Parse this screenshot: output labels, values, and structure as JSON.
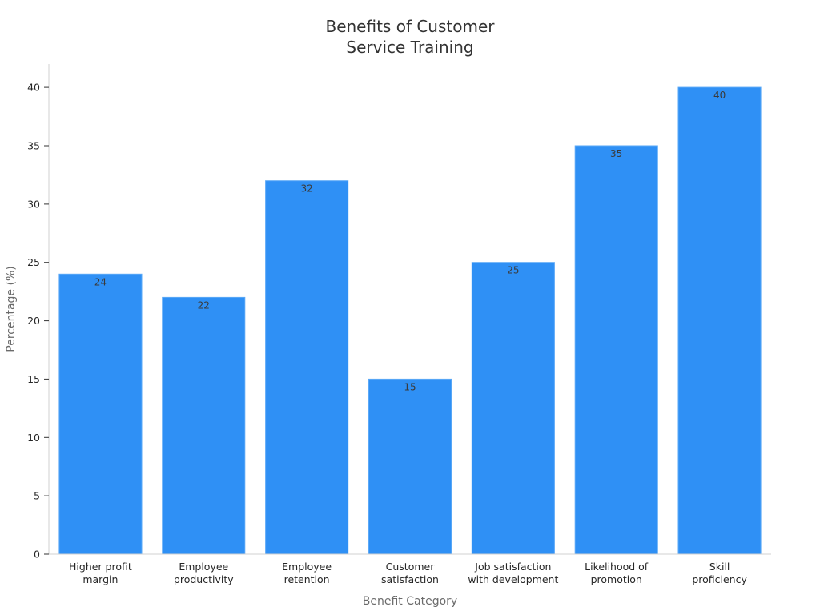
{
  "chart_data": {
    "type": "bar",
    "title": "Benefits of Customer\nService Training",
    "xlabel": "Benefit Category",
    "ylabel": "Percentage (%)",
    "categories": [
      [
        "Higher profit",
        "margin"
      ],
      [
        "Employee",
        "productivity"
      ],
      [
        "Employee",
        "retention"
      ],
      [
        "Customer",
        "satisfaction"
      ],
      [
        "Job satisfaction",
        "with development"
      ],
      [
        "Likelihood of",
        "promotion"
      ],
      [
        "Skill",
        "proficiency"
      ]
    ],
    "values": [
      24,
      22,
      32,
      15,
      25,
      35,
      40
    ],
    "ylim": [
      0,
      42
    ],
    "yticks": [
      0,
      5,
      10,
      15,
      20,
      25,
      30,
      35,
      40
    ],
    "bar_color": "#2f90f5",
    "grid": false,
    "legend": "none"
  }
}
